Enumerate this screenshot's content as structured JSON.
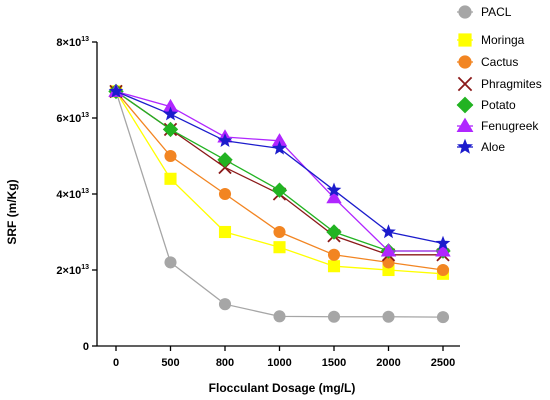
{
  "chart_data": {
    "type": "line",
    "title": "",
    "xlabel": "Flocculant Dosage (mg/L)",
    "ylabel": "SRF (m/Kg)",
    "categories": [
      "0",
      "500",
      "800",
      "1000",
      "1500",
      "2000",
      "2500"
    ],
    "ylim": [
      0,
      80000000000000.0
    ],
    "yticks": [
      {
        "value": 0,
        "label": "0"
      },
      {
        "value": 20000000000000.0,
        "label": "2×10",
        "exp": "13"
      },
      {
        "value": 40000000000000.0,
        "label": "4×10",
        "exp": "13"
      },
      {
        "value": 60000000000000.0,
        "label": "6×10",
        "exp": "13"
      },
      {
        "value": 80000000000000.0,
        "label": "8×10",
        "exp": "13"
      }
    ],
    "grid": false,
    "legend_position": "top-right",
    "series": [
      {
        "name": "PACL",
        "color": "#a6a6a6",
        "marker": "circle",
        "values": [
          67000000000000.0,
          22000000000000.0,
          11000000000000.0,
          7800000000000.0,
          7700000000000.0,
          7700000000000.0,
          7600000000000.0
        ]
      },
      {
        "name": "Moringa",
        "color": "#ffff00",
        "marker": "square",
        "values": [
          67000000000000.0,
          44000000000000.0,
          30000000000000.0,
          26000000000000.0,
          21000000000000.0,
          20000000000000.0,
          19000000000000.0
        ]
      },
      {
        "name": "Cactus",
        "color": "#f28522",
        "marker": "circle",
        "values": [
          67000000000000.0,
          50000000000000.0,
          40000000000000.0,
          30000000000000.0,
          24000000000000.0,
          22000000000000.0,
          20000000000000.0
        ]
      },
      {
        "name": "Phragmites",
        "color": "#8b1a1a",
        "marker": "x",
        "values": [
          67000000000000.0,
          57000000000000.0,
          47000000000000.0,
          40000000000000.0,
          29000000000000.0,
          24000000000000.0,
          24000000000000.0
        ]
      },
      {
        "name": "Potato",
        "color": "#22b322",
        "marker": "diamond",
        "values": [
          67000000000000.0,
          57000000000000.0,
          49000000000000.0,
          41000000000000.0,
          30000000000000.0,
          25000000000000.0,
          25000000000000.0
        ]
      },
      {
        "name": "Fenugreek",
        "color": "#b026ff",
        "marker": "triangle",
        "values": [
          67000000000000.0,
          63000000000000.0,
          55000000000000.0,
          54000000000000.0,
          39000000000000.0,
          25000000000000.0,
          25000000000000.0
        ]
      },
      {
        "name": "Aloe",
        "color": "#1c1ccc",
        "marker": "star",
        "values": [
          67000000000000.0,
          61000000000000.0,
          54000000000000.0,
          52000000000000.0,
          41000000000000.0,
          30000000000000.0,
          27000000000000.0
        ]
      }
    ]
  }
}
